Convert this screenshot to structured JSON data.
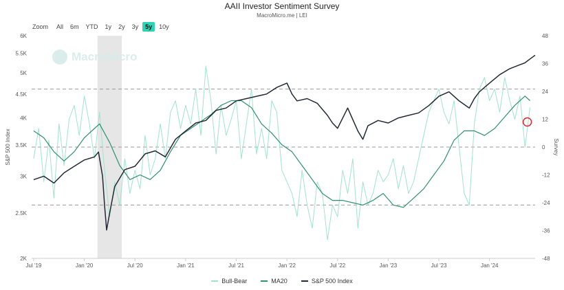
{
  "header": {
    "title": "AAII Investor Sentiment Survey",
    "subtitle": "MacroMicro.me | LEI"
  },
  "zoom": {
    "label": "Zoom",
    "options": [
      "All",
      "6m",
      "YTD",
      "1y",
      "2y",
      "3y",
      "5y",
      "10y"
    ],
    "active": "5y"
  },
  "watermark": "MacroMicro",
  "colors": {
    "bull_bear": "#9fe3cf",
    "ma20": "#2f8f6e",
    "sp500": "#222833",
    "recession": "#e6e6e6",
    "marker": "#e0242b"
  },
  "chart_data": {
    "type": "line",
    "x_ticks": [
      {
        "label": "Jul '19",
        "t": 2019.5
      },
      {
        "label": "Jan '20",
        "t": 2020.0
      },
      {
        "label": "Jul '20",
        "t": 2020.5
      },
      {
        "label": "Jan '21",
        "t": 2021.0
      },
      {
        "label": "Jul '21",
        "t": 2021.5
      },
      {
        "label": "Jan '22",
        "t": 2022.0
      },
      {
        "label": "Jul '22",
        "t": 2022.5
      },
      {
        "label": "Jan '23",
        "t": 2023.0
      },
      {
        "label": "Jul '23",
        "t": 2023.5
      },
      {
        "label": "Jan '24",
        "t": 2024.0
      }
    ],
    "xlim": [
      2019.48,
      2024.45
    ],
    "left_axis": {
      "label": "S&P 500 Index",
      "scale": "log",
      "ylim": [
        2000,
        6000
      ],
      "ticks": [
        {
          "v": 2000,
          "label": "2K"
        },
        {
          "v": 2500,
          "label": "2.5K"
        },
        {
          "v": 3000,
          "label": "3K"
        },
        {
          "v": 3500,
          "label": "3.5K"
        },
        {
          "v": 4000,
          "label": "4K"
        },
        {
          "v": 4500,
          "label": "4.5K"
        },
        {
          "v": 5000,
          "label": "5K"
        },
        {
          "v": 5500,
          "label": "5.5K"
        },
        {
          "v": 6000,
          "label": "6K"
        }
      ]
    },
    "right_axis": {
      "label": "Survey",
      "ylim": [
        -48,
        48
      ],
      "ticks": [
        {
          "v": -48,
          "label": "-48"
        },
        {
          "v": -36,
          "label": "-36"
        },
        {
          "v": -24,
          "label": "-24"
        },
        {
          "v": -12,
          "label": "-12"
        },
        {
          "v": 0,
          "label": "0"
        },
        {
          "v": 12,
          "label": "12"
        },
        {
          "v": 24,
          "label": "24"
        },
        {
          "v": 36,
          "label": "36"
        },
        {
          "v": 48,
          "label": "48"
        }
      ]
    },
    "reference_lines": [
      25,
      0,
      -25
    ],
    "recession_band": [
      2020.13,
      2020.37
    ],
    "series": [
      {
        "name": "Bull-Bear",
        "axis": "right",
        "x": [
          2019.5,
          2019.55,
          2019.6,
          2019.65,
          2019.7,
          2019.75,
          2019.8,
          2019.85,
          2019.9,
          2019.95,
          2020.0,
          2020.05,
          2020.1,
          2020.15,
          2020.2,
          2020.25,
          2020.3,
          2020.35,
          2020.4,
          2020.45,
          2020.5,
          2020.55,
          2020.6,
          2020.65,
          2020.7,
          2020.75,
          2020.8,
          2020.85,
          2020.9,
          2020.95,
          2021.0,
          2021.05,
          2021.1,
          2021.15,
          2021.2,
          2021.25,
          2021.3,
          2021.35,
          2021.4,
          2021.45,
          2021.5,
          2021.55,
          2021.6,
          2021.65,
          2021.7,
          2021.75,
          2021.8,
          2021.85,
          2021.9,
          2021.95,
          2022.0,
          2022.05,
          2022.1,
          2022.15,
          2022.2,
          2022.25,
          2022.3,
          2022.35,
          2022.4,
          2022.45,
          2022.5,
          2022.55,
          2022.6,
          2022.65,
          2022.7,
          2022.75,
          2022.8,
          2022.85,
          2022.9,
          2022.95,
          2023.0,
          2023.05,
          2023.1,
          2023.15,
          2023.2,
          2023.25,
          2023.3,
          2023.35,
          2023.4,
          2023.45,
          2023.5,
          2023.55,
          2023.6,
          2023.65,
          2023.7,
          2023.75,
          2023.8,
          2023.85,
          2023.9,
          2023.95,
          2024.0,
          2024.05,
          2024.1,
          2024.15,
          2024.2,
          2024.25,
          2024.3,
          2024.35,
          2024.4
        ],
        "values": [
          -5,
          8,
          -15,
          3,
          -22,
          10,
          -8,
          12,
          18,
          5,
          22,
          10,
          -5,
          15,
          -10,
          -30,
          -15,
          -25,
          -5,
          -20,
          -10,
          -18,
          5,
          -12,
          -5,
          10,
          -5,
          15,
          20,
          8,
          18,
          10,
          25,
          5,
          35,
          20,
          -3,
          18,
          5,
          12,
          20,
          -5,
          10,
          25,
          -3,
          8,
          -5,
          20,
          15,
          -10,
          -15,
          -20,
          -30,
          -10,
          -25,
          -35,
          -15,
          -20,
          -40,
          -25,
          -30,
          -10,
          -20,
          -5,
          -35,
          -15,
          -25,
          -20,
          -10,
          -15,
          -12,
          -5,
          -18,
          -8,
          -20,
          -15,
          -5,
          5,
          15,
          20,
          25,
          15,
          10,
          20,
          0,
          -20,
          -25,
          10,
          25,
          30,
          20,
          25,
          15,
          30,
          20,
          12,
          22,
          0,
          17
        ]
      },
      {
        "name": "MA20",
        "axis": "right",
        "x": [
          2019.5,
          2019.6,
          2019.7,
          2019.8,
          2019.9,
          2020.0,
          2020.1,
          2020.15,
          2020.25,
          2020.35,
          2020.45,
          2020.55,
          2020.65,
          2020.75,
          2020.85,
          2020.95,
          2021.05,
          2021.15,
          2021.25,
          2021.35,
          2021.45,
          2021.55,
          2021.65,
          2021.75,
          2021.85,
          2021.95,
          2022.05,
          2022.15,
          2022.25,
          2022.35,
          2022.45,
          2022.55,
          2022.65,
          2022.75,
          2022.85,
          2022.95,
          2023.05,
          2023.15,
          2023.25,
          2023.35,
          2023.45,
          2023.55,
          2023.65,
          2023.75,
          2023.85,
          2023.95,
          2024.05,
          2024.15,
          2024.25,
          2024.35,
          2024.4
        ],
        "values": [
          7,
          4,
          -2,
          -6,
          -2,
          4,
          8,
          10,
          2,
          -8,
          -14,
          -12,
          -14,
          -10,
          -2,
          5,
          8,
          11,
          14,
          18,
          20,
          20,
          17,
          10,
          6,
          1,
          -2,
          -8,
          -14,
          -20,
          -23,
          -23,
          -24,
          -25,
          -23,
          -20,
          -25,
          -26,
          -22,
          -18,
          -12,
          -6,
          3,
          7,
          7,
          5,
          8,
          13,
          18,
          22,
          20
        ]
      },
      {
        "name": "S&P 500 Index",
        "axis": "left",
        "x": [
          2019.5,
          2019.6,
          2019.7,
          2019.8,
          2019.9,
          2020.0,
          2020.1,
          2020.14,
          2020.18,
          2020.2,
          2020.22,
          2020.25,
          2020.3,
          2020.4,
          2020.5,
          2020.6,
          2020.7,
          2020.8,
          2020.9,
          2021.0,
          2021.1,
          2021.2,
          2021.3,
          2021.4,
          2021.5,
          2021.6,
          2021.7,
          2021.8,
          2021.9,
          2022.0,
          2022.05,
          2022.1,
          2022.2,
          2022.3,
          2022.4,
          2022.45,
          2022.5,
          2022.6,
          2022.7,
          2022.75,
          2022.8,
          2022.9,
          2023.0,
          2023.1,
          2023.2,
          2023.3,
          2023.4,
          2023.5,
          2023.6,
          2023.7,
          2023.8,
          2023.85,
          2023.9,
          2024.0,
          2024.1,
          2024.2,
          2024.3,
          2024.35,
          2024.4,
          2024.45
        ],
        "values": [
          2950,
          3000,
          2900,
          3050,
          3150,
          3250,
          3300,
          3380,
          3000,
          2600,
          2300,
          2500,
          2850,
          3100,
          3150,
          3350,
          3400,
          3300,
          3600,
          3750,
          3900,
          3950,
          4150,
          4200,
          4350,
          4400,
          4450,
          4500,
          4650,
          4750,
          4500,
          4350,
          4400,
          4300,
          4050,
          3900,
          3800,
          4200,
          3750,
          3600,
          3850,
          3950,
          3900,
          4000,
          4050,
          4100,
          4250,
          4450,
          4550,
          4350,
          4200,
          4400,
          4550,
          4750,
          4950,
          5100,
          5200,
          5250,
          5350,
          5450
        ]
      }
    ]
  }
}
